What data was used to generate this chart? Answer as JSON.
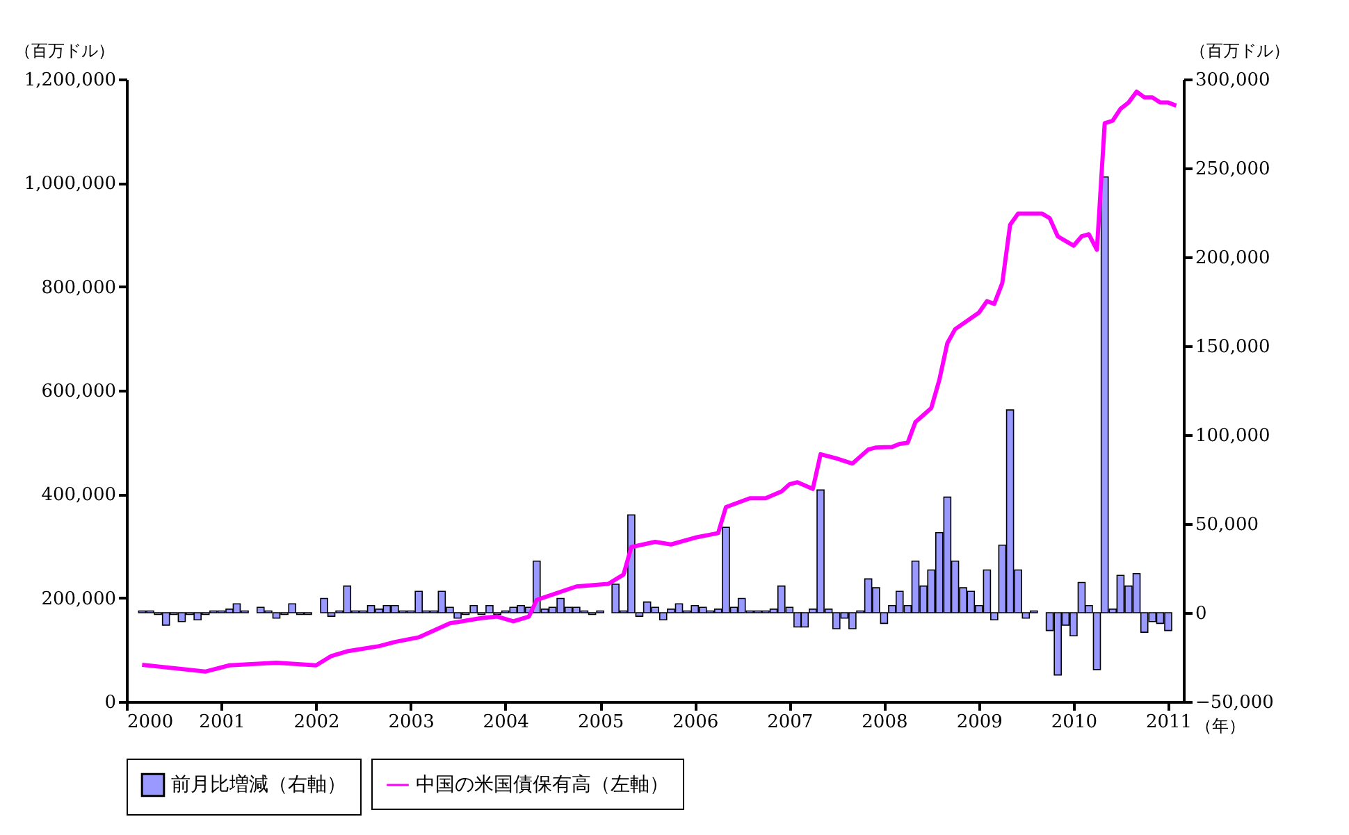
{
  "chart_data": {
    "type": "bar",
    "x": [
      "2000-03",
      "2000-04",
      "2000-05",
      "2000-06",
      "2000-07",
      "2000-08",
      "2000-09",
      "2000-10",
      "2000-11",
      "2000-12",
      "2001-01",
      "2001-02",
      "2001-03",
      "2001-04",
      "2001-05",
      "2001-06",
      "2001-07",
      "2001-08",
      "2001-09",
      "2001-10",
      "2001-11",
      "2001-12",
      "2002-01",
      "2002-02",
      "2002-03",
      "2002-04",
      "2002-05",
      "2002-06",
      "2002-07",
      "2002-08",
      "2002-09",
      "2002-10",
      "2002-11",
      "2002-12",
      "2003-01",
      "2003-02",
      "2003-03",
      "2003-04",
      "2003-05",
      "2003-06",
      "2003-07",
      "2003-08",
      "2003-09",
      "2003-10",
      "2003-11",
      "2003-12",
      "2004-01",
      "2004-02",
      "2004-03",
      "2004-04",
      "2004-05",
      "2004-06",
      "2004-07",
      "2004-08",
      "2004-09",
      "2004-10",
      "2004-11",
      "2004-12",
      "2005-01",
      "2005-02",
      "2005-03",
      "2005-04",
      "2005-05",
      "2005-06",
      "2005-07",
      "2005-08",
      "2005-09",
      "2005-10",
      "2005-11",
      "2005-12",
      "2006-01",
      "2006-02",
      "2006-03",
      "2006-04",
      "2006-05",
      "2006-06",
      "2006-07",
      "2006-08",
      "2006-09",
      "2006-10",
      "2006-11",
      "2006-12",
      "2007-01",
      "2007-02",
      "2007-03",
      "2007-04",
      "2007-05",
      "2007-06",
      "2007-07",
      "2007-08",
      "2007-09",
      "2007-10",
      "2007-11",
      "2007-12",
      "2008-01",
      "2008-02",
      "2008-03",
      "2008-04",
      "2008-05",
      "2008-06",
      "2008-07",
      "2008-08",
      "2008-09",
      "2008-10",
      "2008-11",
      "2008-12",
      "2009-01",
      "2009-02",
      "2009-03",
      "2009-04",
      "2009-05",
      "2009-06",
      "2009-07",
      "2009-08",
      "2009-09",
      "2009-10",
      "2009-11",
      "2009-12",
      "2010-01",
      "2010-02",
      "2010-03",
      "2010-04",
      "2010-05",
      "2010-06",
      "2010-07",
      "2010-08",
      "2010-09",
      "2010-10",
      "2010-11",
      "2010-12",
      "2011-01"
    ],
    "series": [
      {
        "name": "前月比増減（右軸）",
        "axis": "y2",
        "color": "#9999ff",
        "values": [
          1000,
          1000,
          -1000,
          -7000,
          -1000,
          -5000,
          -1000,
          -4000,
          -1000,
          1000,
          1000,
          2000,
          5000,
          1000,
          null,
          3000,
          1000,
          -3000,
          -1000,
          5000,
          -1000,
          -1000,
          null,
          8000,
          -2000,
          1000,
          15000,
          1000,
          1000,
          4000,
          2000,
          4000,
          4000,
          1000,
          1000,
          12000,
          1000,
          1000,
          12000,
          3000,
          -3000,
          -1000,
          4000,
          -1000,
          4000,
          -1000,
          1000,
          3000,
          4000,
          3000,
          29000,
          2000,
          3000,
          8000,
          3000,
          3000,
          1000,
          -1000,
          1000,
          null,
          16000,
          1000,
          55000,
          -2000,
          6000,
          3000,
          -4000,
          2000,
          5000,
          1000,
          4000,
          3000,
          1000,
          2000,
          48000,
          3000,
          8000,
          1000,
          1000,
          1000,
          2000,
          15000,
          3000,
          -8000,
          -8000,
          2000,
          69000,
          2000,
          -9000,
          -3000,
          -9000,
          1000,
          19000,
          14000,
          -6000,
          4000,
          12000,
          4000,
          29000,
          15000,
          24000,
          45000,
          65000,
          29000,
          14000,
          12000,
          4000,
          24000,
          -4000,
          38000,
          114000,
          24000,
          -3000,
          1000,
          null,
          -10000,
          -35000,
          -7000,
          -13000,
          17000,
          4000,
          -32000,
          245000,
          2000,
          21000,
          15000,
          22000,
          -11000,
          -5000,
          -6000,
          -10000
        ]
      },
      {
        "name": "中国の米国債保有高（左軸）",
        "type": "line",
        "color": "#ff00ff",
        "x": [
          "2000-03",
          "2000-11",
          "2001-02",
          "2001-08",
          "2002-01",
          "2002-03",
          "2002-05",
          "2002-09",
          "2002-11",
          "2003-02",
          "2003-06",
          "2003-10",
          "2003-12",
          "2004-02",
          "2004-04",
          "2004-05",
          "2004-10",
          "2005-02",
          "2005-04",
          "2005-05",
          "2005-08",
          "2005-10",
          "2006-01",
          "2006-04",
          "2006-05",
          "2006-08",
          "2006-10",
          "2006-12",
          "2007-01",
          "2007-02",
          "2007-04",
          "2007-05",
          "2007-07",
          "2007-09",
          "2007-11",
          "2007-12",
          "2008-02",
          "2008-03",
          "2008-04",
          "2008-05",
          "2008-07",
          "2008-08",
          "2008-09",
          "2008-10",
          "2009-01",
          "2009-02",
          "2009-03",
          "2009-04",
          "2009-05",
          "2009-06",
          "2009-09",
          "2009-10",
          "2009-11",
          "2010-01",
          "2010-02",
          "2010-03",
          "2010-04",
          "2010-05",
          "2010-06",
          "2010-07",
          "2010-08",
          "2010-09",
          "2010-10",
          "2010-11",
          "2010-12",
          "2011-01",
          "2011-02"
        ],
        "values": [
          71000,
          58000,
          70000,
          75000,
          70000,
          88000,
          97000,
          107000,
          115000,
          124000,
          151000,
          161000,
          164000,
          155000,
          164000,
          196000,
          222000,
          227000,
          245000,
          298000,
          308000,
          303000,
          316000,
          325000,
          375000,
          392000,
          392000,
          405000,
          419000,
          423000,
          410000,
          477000,
          469000,
          459000,
          486000,
          490000,
          491000,
          497000,
          499000,
          539000,
          566000,
          620000,
          691000,
          718000,
          750000,
          772000,
          767000,
          807000,
          919000,
          941000,
          941000,
          932000,
          897000,
          879000,
          897000,
          901000,
          871000,
          1115000,
          1120000,
          1143000,
          1155000,
          1176000,
          1165000,
          1165000,
          1155000,
          1155000,
          1149000
        ]
      }
    ],
    "xlabel": "（年）",
    "ylabel": "（百万ドル）",
    "y2label": "（百万ドル）",
    "xlim": [
      "2000-01",
      "2011-03"
    ],
    "xticks": [
      "2000",
      "2001",
      "2002",
      "2003",
      "2004",
      "2005",
      "2006",
      "2007",
      "2008",
      "2009",
      "2010",
      "2011"
    ],
    "ylim": [
      0,
      1200000
    ],
    "yticks": [
      0,
      {
        "value": 200000,
        "label": "200,000"
      },
      {
        "value": 400000,
        "label": "400,000"
      },
      {
        "value": 600000,
        "label": "600,000"
      },
      {
        "value": 800000,
        "label": "800,000"
      },
      {
        "value": 1000000,
        "label": "1,000,000"
      },
      {
        "value": 1200000,
        "label": "1,200,000"
      }
    ],
    "y2lim": [
      -50000,
      300000
    ],
    "y2ticks": [
      {
        "value": -50000,
        "label": "−50,000"
      },
      0,
      {
        "value": 50000,
        "label": "50,000"
      },
      {
        "value": 100000,
        "label": "100,000"
      },
      {
        "value": 150000,
        "label": "150,000"
      },
      {
        "value": 200000,
        "label": "200,000"
      },
      {
        "value": 250000,
        "label": "250,000"
      },
      {
        "value": 300000,
        "label": "300,000"
      }
    ],
    "grid": false,
    "legend": "bottom",
    "line_style": "solid",
    "marker": "none"
  }
}
